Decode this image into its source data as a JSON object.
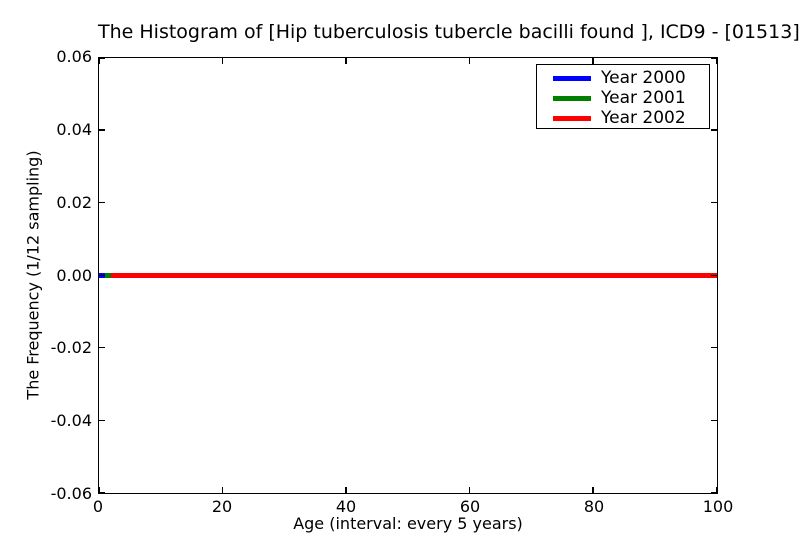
{
  "chart_data": {
    "type": "line",
    "title": "The Histogram of [Hip tuberculosis tubercle bacilli found ], ICD9 - [01513]",
    "xlabel": "Age (interval: every 5 years)",
    "ylabel": "The Frequency (1/12 sampling)",
    "xlim": [
      0,
      100
    ],
    "ylim": [
      -0.06,
      0.06
    ],
    "grid": false,
    "legend_position": "upper right",
    "xticks": [
      {
        "v": 0,
        "label": "0"
      },
      {
        "v": 20,
        "label": "20"
      },
      {
        "v": 40,
        "label": "40"
      },
      {
        "v": 60,
        "label": "60"
      },
      {
        "v": 80,
        "label": "80"
      },
      {
        "v": 100,
        "label": "100"
      }
    ],
    "yticks": [
      {
        "v": 0.06,
        "label": "0.06"
      },
      {
        "v": 0.04,
        "label": "0.04"
      },
      {
        "v": 0.02,
        "label": "0.02"
      },
      {
        "v": 0.0,
        "label": "0.00"
      },
      {
        "v": -0.02,
        "label": "-0.02"
      },
      {
        "v": -0.04,
        "label": "-0.04"
      },
      {
        "v": -0.06,
        "label": "-0.06"
      }
    ],
    "series": [
      {
        "name": "Year 2000",
        "color": "#0000ff",
        "x": [
          0,
          100
        ],
        "y": [
          0,
          0
        ]
      },
      {
        "name": "Year 2001",
        "color": "#008000",
        "x": [
          1,
          100
        ],
        "y": [
          0,
          0
        ]
      },
      {
        "name": "Year 2002",
        "color": "#ff0000",
        "x": [
          2,
          100
        ],
        "y": [
          0,
          0
        ]
      }
    ]
  }
}
